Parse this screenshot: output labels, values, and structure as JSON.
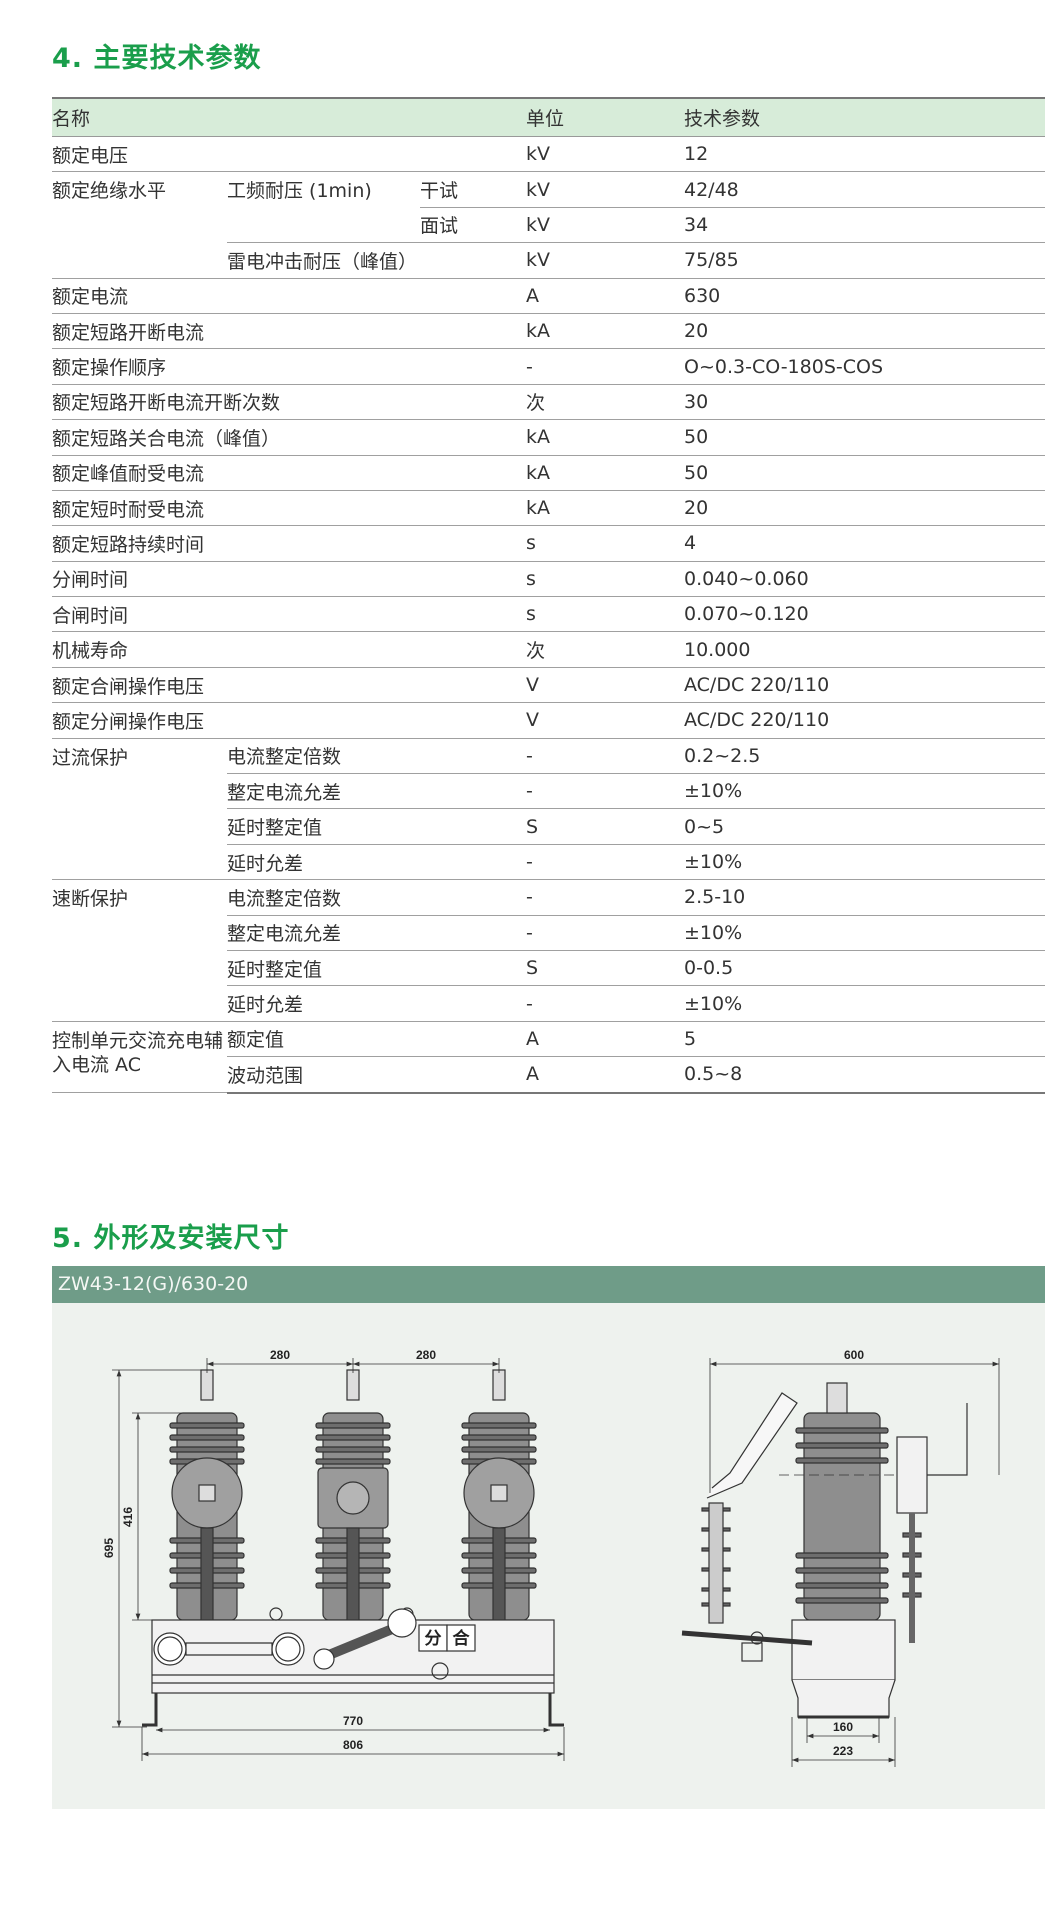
{
  "section4": {
    "title": "4. 主要技术参数"
  },
  "table": {
    "headers": {
      "name": "名称",
      "unit": "单位",
      "value": "技术参数"
    },
    "rows": [
      [
        "额定电压",
        "",
        "",
        "kV",
        "12"
      ],
      [
        "额定绝缘水平",
        "工频耐压 (1min)",
        "干试",
        "kV",
        "42/48"
      ],
      [
        null,
        null,
        "面试",
        "kV",
        "34"
      ],
      [
        null,
        "雷电冲击耐压（峰值）",
        "",
        "kV",
        "75/85"
      ],
      [
        "额定电流",
        "",
        "",
        "A",
        "630"
      ],
      [
        "额定短路开断电流",
        "",
        "",
        "kA",
        "20"
      ],
      [
        "额定操作顺序",
        "",
        "",
        "-",
        "O~0.3-CO-180S-COS"
      ],
      [
        "额定短路开断电流开断次数",
        "",
        "",
        "次",
        "30"
      ],
      [
        "额定短路关合电流（峰值）",
        "",
        "",
        "kA",
        "50"
      ],
      [
        "额定峰值耐受电流",
        "",
        "",
        "kA",
        "50"
      ],
      [
        "额定短时耐受电流",
        "",
        "",
        "kA",
        "20"
      ],
      [
        "额定短路持续时间",
        "",
        "",
        "s",
        "4"
      ],
      [
        "分闸时间",
        "",
        "",
        "s",
        "0.040~0.060"
      ],
      [
        "合闸时间",
        "",
        "",
        "s",
        "0.070~0.120"
      ],
      [
        "机械寿命",
        "",
        "",
        "次",
        "10.000"
      ],
      [
        "额定合闸操作电压",
        "",
        "",
        "V",
        "AC/DC 220/110"
      ],
      [
        "额定分闸操作电压",
        "",
        "",
        "V",
        "AC/DC 220/110"
      ],
      [
        "过流保护",
        "电流整定倍数",
        "",
        "-",
        "0.2~2.5"
      ],
      [
        null,
        "整定电流允差",
        "",
        "-",
        "±10%"
      ],
      [
        null,
        "延时整定值",
        "",
        "S",
        "0~5"
      ],
      [
        null,
        "延时允差",
        "",
        "-",
        "±10%"
      ],
      [
        "速断保护",
        "电流整定倍数",
        "",
        "-",
        "2.5-10"
      ],
      [
        null,
        "整定电流允差",
        "",
        "-",
        "±10%"
      ],
      [
        null,
        "延时整定值",
        "",
        "S",
        "0-0.5"
      ],
      [
        null,
        "延时允差",
        "",
        "-",
        "±10%"
      ],
      [
        "控制单元交流充电辅入电流 AC",
        "额定值",
        "",
        "A",
        "5"
      ],
      [
        null,
        "波动范围",
        "",
        "A",
        "0.5~8"
      ]
    ]
  },
  "section5": {
    "title": "5. 外形及安装尺寸",
    "model": "ZW43-12(G)/630-20"
  },
  "front_view": {
    "dims": {
      "pitch_1": "280",
      "pitch_2": "280",
      "total_height": "695",
      "insulator_height": "416",
      "mount_width": "770",
      "overall_width": "806"
    },
    "labels": {
      "open": "分",
      "close": "合"
    }
  },
  "side_view": {
    "dims": {
      "width": "600",
      "mount_depth": "160",
      "overall_depth": "223"
    }
  },
  "colors": {
    "title_green": "#1a9e4b",
    "header_bg": "#d7ecd9",
    "bar_bg": "#6f9c88",
    "diagram_bg": "#eef2ee"
  }
}
